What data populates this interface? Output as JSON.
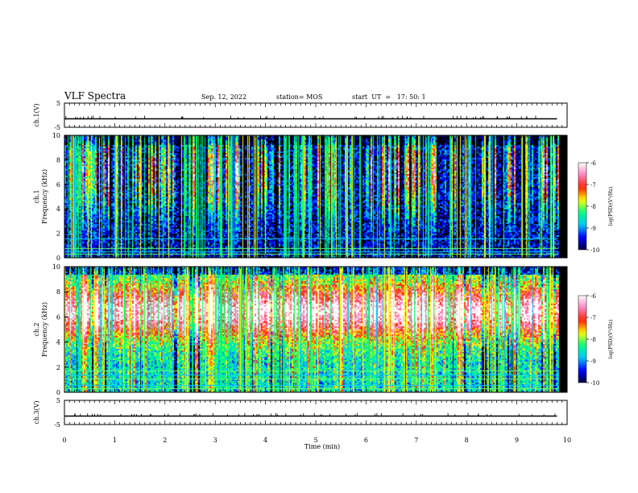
{
  "header": {
    "title": "VLF Spectra",
    "date": "Sep. 12, 2022",
    "station": "station= MOS",
    "start": "start  UT  =   17: 50: 1"
  },
  "chart_data": [
    {
      "type": "line",
      "panel": "ch1-waveform",
      "ylabel": "ch.1(V)",
      "ylim": [
        -5,
        5
      ],
      "yticks": [
        "5",
        "-5"
      ],
      "series": [
        {
          "values": [
            -1.5,
            -1.5,
            -1.5,
            -1.5,
            -1.5,
            -1.5,
            -1.5,
            -1.5,
            -1.5,
            -1.5,
            -1.5
          ]
        }
      ],
      "x": [
        0,
        1,
        2,
        3,
        4,
        5,
        6,
        7,
        8,
        9,
        9.8
      ]
    },
    {
      "type": "heatmap",
      "panel": "ch1-spectrogram",
      "ylabel": "ch.1 Frequency (kHz)",
      "ylim": [
        0,
        10
      ],
      "yticks": [
        "0",
        "2",
        "4",
        "6",
        "8",
        "10"
      ],
      "xlim": [
        0,
        10
      ],
      "colorbar": {
        "label": "log(PSD)(V²/Hz)",
        "range": [
          -10,
          -6
        ],
        "ticks": [
          "-6",
          "-7",
          "-8",
          "-9",
          "-10"
        ]
      },
      "typical_log_psd": {
        "mean": -9.2,
        "band_low_khz": 0.5
      }
    },
    {
      "type": "heatmap",
      "panel": "ch2-spectrogram",
      "ylabel": "ch.2 Frequency (kHz)",
      "ylim": [
        0,
        10
      ],
      "yticks": [
        "0",
        "2",
        "4",
        "6",
        "8",
        "10"
      ],
      "xlim": [
        0,
        10
      ],
      "colorbar": {
        "label": "log(PSD)(V²/Hz)",
        "range": [
          -10,
          -6
        ],
        "ticks": [
          "-6",
          "-7",
          "-8",
          "-9",
          "-10"
        ]
      },
      "typical_log_psd": {
        "mean": -7.6,
        "peak_band_khz": [
          5,
          8
        ]
      }
    },
    {
      "type": "line",
      "panel": "ch3-waveform",
      "ylabel": "ch.3(V)",
      "ylim": [
        -5,
        5
      ],
      "yticks": [
        "5",
        "-5"
      ],
      "series": [
        {
          "values": [
            -1.5,
            -1.5,
            -1.5,
            -1.5,
            -1.5,
            -1.5,
            -1.5,
            -1.5,
            -1.5,
            -1.5,
            -1.5
          ]
        }
      ],
      "x": [
        0,
        1,
        2,
        3,
        4,
        5,
        6,
        7,
        8,
        9,
        9.8
      ]
    }
  ],
  "xaxis": {
    "label": "Time  (min)",
    "lim": [
      0,
      10
    ],
    "ticks": [
      "0",
      "1",
      "2",
      "3",
      "4",
      "5",
      "6",
      "7",
      "8",
      "9",
      "10"
    ]
  },
  "colors": {
    "background": "#000000",
    "colormap": [
      "#000040",
      "#0000ff",
      "#00c8ff",
      "#00ff80",
      "#ffff00",
      "#ff2000",
      "#ff80c0",
      "#ffffff"
    ]
  }
}
